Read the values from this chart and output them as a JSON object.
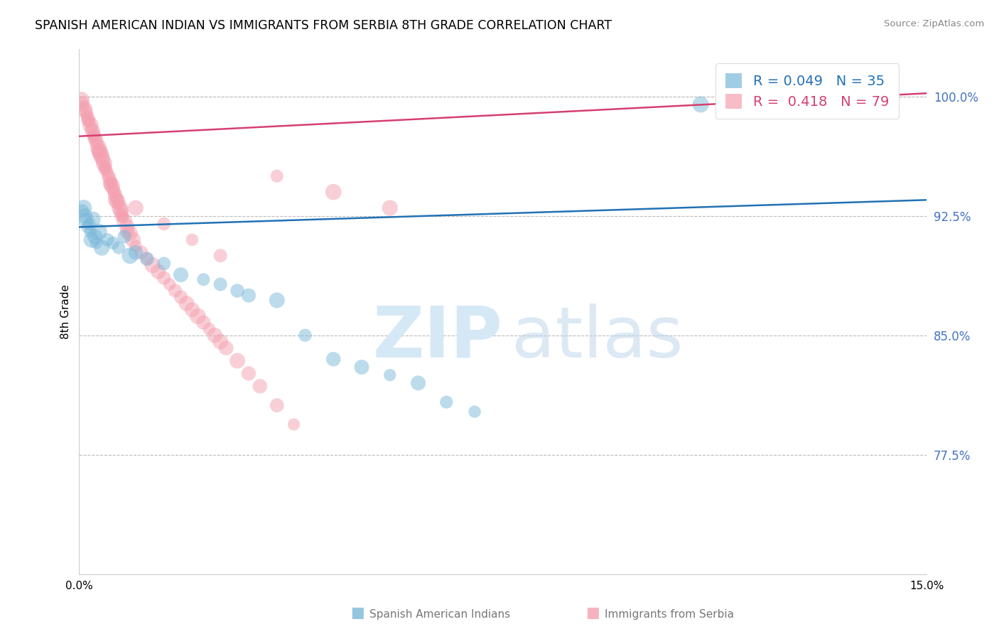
{
  "title": "SPANISH AMERICAN INDIAN VS IMMIGRANTS FROM SERBIA 8TH GRADE CORRELATION CHART",
  "source": "Source: ZipAtlas.com",
  "ylabel": "8th Grade",
  "r_blue": 0.049,
  "n_blue": 35,
  "r_pink": 0.418,
  "n_pink": 79,
  "legend_label_blue": "Spanish American Indians",
  "legend_label_pink": "Immigrants from Serbia",
  "xlim": [
    0.0,
    15.0
  ],
  "ylim": [
    70.0,
    103.0
  ],
  "ytick_vals": [
    77.5,
    85.0,
    92.5,
    100.0
  ],
  "ytick_labels": [
    "77.5%",
    "85.0%",
    "92.5%",
    "100.0%"
  ],
  "blue_color": "#7ab8d9",
  "pink_color": "#f4a0b0",
  "blue_line_color": "#2171b5",
  "pink_line_color": "#d44070",
  "blue_scatter_x": [
    0.05,
    0.08,
    0.1,
    0.12,
    0.15,
    0.18,
    0.2,
    0.22,
    0.25,
    0.28,
    0.3,
    0.35,
    0.4,
    0.5,
    0.6,
    0.7,
    0.8,
    1.0,
    1.2,
    1.5,
    1.8,
    2.2,
    2.5,
    2.8,
    3.0,
    3.5,
    4.0,
    4.5,
    5.0,
    5.5,
    6.0,
    6.5,
    7.0,
    11.0,
    0.9
  ],
  "blue_scatter_y": [
    92.8,
    93.0,
    92.5,
    92.2,
    91.8,
    92.0,
    91.5,
    91.0,
    92.3,
    91.2,
    90.8,
    91.5,
    90.5,
    91.0,
    90.8,
    90.5,
    91.2,
    90.2,
    89.8,
    89.5,
    88.8,
    88.5,
    88.2,
    87.8,
    87.5,
    87.2,
    85.0,
    83.5,
    83.0,
    82.5,
    82.0,
    80.8,
    80.2,
    99.5,
    90.0
  ],
  "pink_scatter_x": [
    0.04,
    0.06,
    0.08,
    0.1,
    0.12,
    0.14,
    0.16,
    0.18,
    0.2,
    0.22,
    0.24,
    0.26,
    0.28,
    0.3,
    0.32,
    0.34,
    0.36,
    0.38,
    0.4,
    0.42,
    0.44,
    0.46,
    0.48,
    0.5,
    0.52,
    0.54,
    0.56,
    0.58,
    0.6,
    0.62,
    0.64,
    0.66,
    0.68,
    0.7,
    0.72,
    0.74,
    0.76,
    0.78,
    0.8,
    0.85,
    0.9,
    0.95,
    1.0,
    1.1,
    1.2,
    1.3,
    1.4,
    1.5,
    1.6,
    1.7,
    1.8,
    1.9,
    2.0,
    2.1,
    2.2,
    2.3,
    2.4,
    2.5,
    2.6,
    2.8,
    3.0,
    3.2,
    3.5,
    3.8,
    0.15,
    0.25,
    0.35,
    0.45,
    0.55,
    0.65,
    0.75,
    0.85,
    1.0,
    1.5,
    2.0,
    2.5,
    3.5,
    4.5,
    5.5
  ],
  "pink_scatter_y": [
    99.8,
    99.6,
    99.4,
    99.2,
    99.0,
    98.8,
    98.6,
    98.4,
    98.2,
    98.0,
    97.8,
    97.6,
    97.4,
    97.2,
    97.0,
    96.8,
    96.6,
    96.4,
    96.2,
    96.0,
    95.8,
    95.6,
    95.4,
    95.2,
    95.0,
    94.8,
    94.6,
    94.4,
    94.2,
    94.0,
    93.8,
    93.6,
    93.4,
    93.2,
    93.0,
    92.8,
    92.6,
    92.4,
    92.2,
    91.8,
    91.4,
    91.0,
    90.6,
    90.2,
    89.8,
    89.4,
    89.0,
    88.6,
    88.2,
    87.8,
    87.4,
    87.0,
    86.6,
    86.2,
    85.8,
    85.4,
    85.0,
    84.6,
    84.2,
    83.4,
    82.6,
    81.8,
    80.6,
    79.4,
    98.5,
    97.5,
    96.5,
    95.5,
    94.5,
    93.5,
    92.5,
    91.5,
    93.0,
    92.0,
    91.0,
    90.0,
    95.0,
    94.0,
    93.0
  ],
  "blue_line_x0": 0.0,
  "blue_line_x1": 15.0,
  "blue_line_y0": 91.8,
  "blue_line_y1": 93.5,
  "pink_line_x0": 0.0,
  "pink_line_x1": 15.0,
  "pink_line_y0": 97.5,
  "pink_line_y1": 100.2
}
